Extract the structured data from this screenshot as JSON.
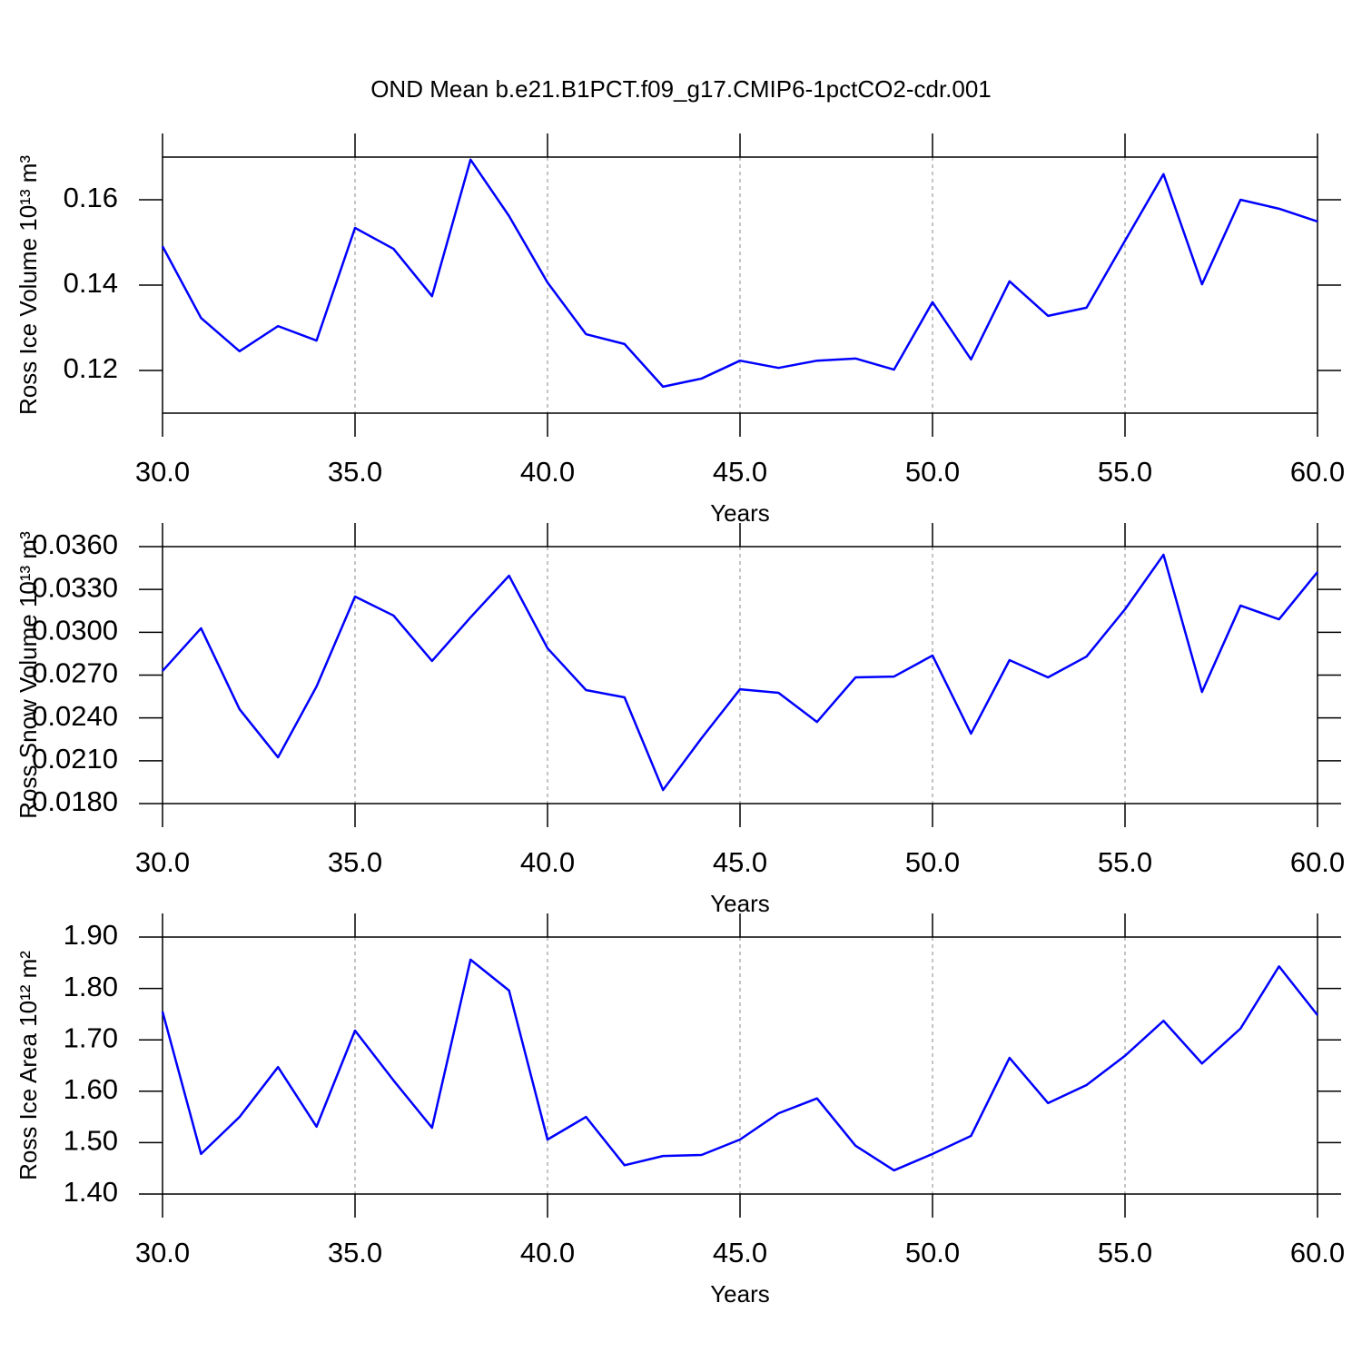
{
  "chart_data": [
    {
      "type": "line",
      "title": "OND Mean b.e21.B1PCT.f09_g17.CMIP6-1pctCO2-cdr.001",
      "ylabel": "Ross Ice Volume 10¹³ m³",
      "xlabel": "Years",
      "color": "#0000ff",
      "grid": true,
      "x": [
        30,
        31,
        32,
        33,
        34,
        35,
        36,
        37,
        38,
        39,
        40,
        41,
        42,
        43,
        44,
        45,
        46,
        47,
        48,
        49,
        50,
        51,
        52,
        53,
        54,
        55,
        56,
        57,
        58,
        59,
        60
      ],
      "values": [
        0.1491,
        0.1323,
        0.1245,
        0.1304,
        0.127,
        0.1534,
        0.1485,
        0.1374,
        0.1694,
        0.1562,
        0.1406,
        0.1285,
        0.1262,
        0.1162,
        0.1181,
        0.1223,
        0.1206,
        0.1223,
        0.1228,
        0.1202,
        0.136,
        0.1226,
        0.1409,
        0.1328,
        0.1347,
        0.1504,
        0.166,
        0.1402,
        0.16,
        0.1579,
        0.1549
      ],
      "xlim": [
        30,
        60
      ],
      "xticks": [
        {
          "value": 30,
          "label": "30.0"
        },
        {
          "value": 35,
          "label": "35.0"
        },
        {
          "value": 40,
          "label": "40.0"
        },
        {
          "value": 45,
          "label": "45.0"
        },
        {
          "value": 50,
          "label": "50.0"
        },
        {
          "value": 55,
          "label": "55.0"
        },
        {
          "value": 60,
          "label": "60.0"
        }
      ],
      "ylim": [
        0.11,
        0.17
      ],
      "yticks": [
        0.12,
        0.14,
        0.16
      ]
    },
    {
      "type": "line",
      "ylabel": "Ross Snow Volume 10¹³ m³",
      "xlabel": "Years",
      "color": "#0000ff",
      "grid": true,
      "x": [
        30,
        31,
        32,
        33,
        34,
        35,
        36,
        37,
        38,
        39,
        40,
        41,
        42,
        43,
        44,
        45,
        46,
        47,
        48,
        49,
        50,
        51,
        52,
        53,
        54,
        55,
        56,
        57,
        58,
        59,
        60
      ],
      "values": [
        0.02729,
        0.03028,
        0.02461,
        0.02124,
        0.0262,
        0.0325,
        0.03117,
        0.02799,
        0.03104,
        0.03396,
        0.02888,
        0.02595,
        0.02544,
        0.01895,
        0.02258,
        0.02601,
        0.02576,
        0.02372,
        0.02684,
        0.0269,
        0.02837,
        0.0229,
        0.02805,
        0.02684,
        0.0283,
        0.03161,
        0.03543,
        0.02582,
        0.03187,
        0.03091,
        0.03422
      ],
      "xlim": [
        30,
        60
      ],
      "xticks": [
        {
          "value": 30,
          "label": "30.0"
        },
        {
          "value": 35,
          "label": "35.0"
        },
        {
          "value": 40,
          "label": "40.0"
        },
        {
          "value": 45,
          "label": "45.0"
        },
        {
          "value": 50,
          "label": "50.0"
        },
        {
          "value": 55,
          "label": "55.0"
        },
        {
          "value": 60,
          "label": "60.0"
        }
      ],
      "ylim": [
        0.018,
        0.036
      ],
      "yticks": [
        {
          "value": 0.018,
          "label": "0.0180"
        },
        {
          "value": 0.021,
          "label": "0.0210"
        },
        {
          "value": 0.024,
          "label": "0.0240"
        },
        {
          "value": 0.027,
          "label": "0.0270"
        },
        {
          "value": 0.03,
          "label": "0.0300"
        },
        {
          "value": 0.033,
          "label": "0.0330"
        },
        {
          "value": 0.036,
          "label": "0.0360"
        }
      ]
    },
    {
      "type": "line",
      "ylabel": "Ross Ice Area 10¹² m²",
      "xlabel": "Years",
      "color": "#0000ff",
      "grid": true,
      "x": [
        30,
        31,
        32,
        33,
        34,
        35,
        36,
        37,
        38,
        39,
        40,
        41,
        42,
        43,
        44,
        45,
        46,
        47,
        48,
        49,
        50,
        51,
        52,
        53,
        54,
        55,
        56,
        57,
        58,
        59,
        60
      ],
      "values": [
        1.755,
        1.478,
        1.55,
        1.647,
        1.531,
        1.718,
        1.621,
        1.529,
        1.856,
        1.796,
        1.506,
        1.55,
        1.456,
        1.474,
        1.476,
        1.506,
        1.557,
        1.586,
        1.494,
        1.446,
        1.478,
        1.513,
        1.665,
        1.577,
        1.612,
        1.669,
        1.737,
        1.654,
        1.722,
        1.843,
        1.748
      ],
      "xlim": [
        30,
        60
      ],
      "xticks": [
        {
          "value": 30,
          "label": "30.0"
        },
        {
          "value": 35,
          "label": "35.0"
        },
        {
          "value": 40,
          "label": "40.0"
        },
        {
          "value": 45,
          "label": "45.0"
        },
        {
          "value": 50,
          "label": "50.0"
        },
        {
          "value": 55,
          "label": "55.0"
        },
        {
          "value": 60,
          "label": "60.0"
        }
      ],
      "ylim": [
        1.4,
        1.9
      ],
      "yticks": [
        {
          "value": 1.4,
          "label": "1.40"
        },
        {
          "value": 1.5,
          "label": "1.50"
        },
        {
          "value": 1.6,
          "label": "1.60"
        },
        {
          "value": 1.7,
          "label": "1.70"
        },
        {
          "value": 1.8,
          "label": "1.80"
        },
        {
          "value": 1.9,
          "label": "1.90"
        }
      ]
    }
  ]
}
